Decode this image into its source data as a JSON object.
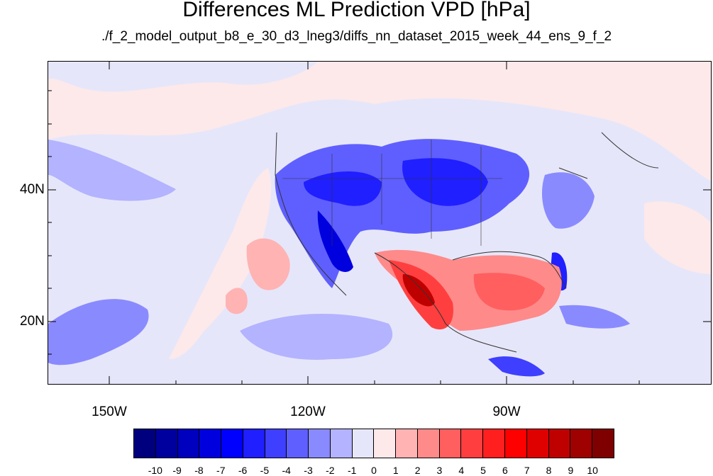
{
  "title": "Differences ML Prediction VPD [hPa]",
  "subtitle": "./f_2_model_output_b8_e_30_d3_lneg3/diffs_nn_dataset_2015_week_44_ens_9_f_2",
  "map": {
    "lat_labels": [
      "40N",
      "20N"
    ],
    "lon_labels": [
      "150W",
      "120W",
      "90W"
    ],
    "region": "North America / Eastern Pacific"
  },
  "colorbar": {
    "colors": [
      "#00007f",
      "#00009f",
      "#0000bf",
      "#0000df",
      "#0000ff",
      "#1f1fff",
      "#3f3fff",
      "#5f5fff",
      "#8a8aff",
      "#b3b3ff",
      "#e6e6fa",
      "#fde9ea",
      "#ffb3b3",
      "#ff8a8a",
      "#ff5f5f",
      "#ff3f3f",
      "#ff1f1f",
      "#ff0000",
      "#df0000",
      "#bf0000",
      "#9f0000",
      "#7f0000"
    ],
    "labels": [
      "-10",
      "-9",
      "-8",
      "-7",
      "-6",
      "-5",
      "-4",
      "-3",
      "-2",
      "-1",
      "0",
      "1",
      "2",
      "3",
      "4",
      "5",
      "6",
      "7",
      "8",
      "9",
      "10"
    ]
  }
}
